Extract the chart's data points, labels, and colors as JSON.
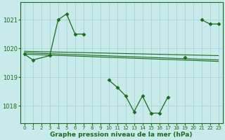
{
  "title": "Graphe pression niveau de la mer (hPa)",
  "bg_color": "#c8eaea",
  "grid_color": "#a8d8d8",
  "line_color": "#1a6b1a",
  "marker_color": "#1a6b1a",
  "xlim": [
    -0.5,
    23.5
  ],
  "ylim": [
    1017.4,
    1021.6
  ],
  "yticks": [
    1018,
    1019,
    1020,
    1021
  ],
  "xticks": [
    0,
    1,
    2,
    3,
    4,
    5,
    6,
    7,
    8,
    9,
    10,
    11,
    12,
    13,
    14,
    15,
    16,
    17,
    18,
    19,
    20,
    21,
    22,
    23
  ],
  "main_series": {
    "x": [
      0,
      1,
      3,
      4,
      5,
      6,
      7,
      10,
      11,
      12,
      13,
      14,
      15,
      16,
      17,
      19,
      21,
      22,
      23
    ],
    "y": [
      1019.8,
      1019.6,
      1019.75,
      1021.0,
      1021.2,
      1020.5,
      1020.5,
      1018.9,
      1018.65,
      1018.35,
      1017.8,
      1018.35,
      1017.75,
      1017.75,
      1018.3,
      1019.7,
      1021.0,
      1020.85,
      1020.85
    ]
  },
  "segment_breaks": [
    1,
    3,
    7,
    10,
    19,
    21
  ],
  "flat_lines": [
    {
      "x": [
        0,
        23
      ],
      "y": [
        1019.9,
        1019.75
      ]
    },
    {
      "x": [
        0,
        23
      ],
      "y": [
        1019.85,
        1019.6
      ]
    },
    {
      "x": [
        0,
        23
      ],
      "y": [
        1019.8,
        1019.55
      ]
    }
  ]
}
